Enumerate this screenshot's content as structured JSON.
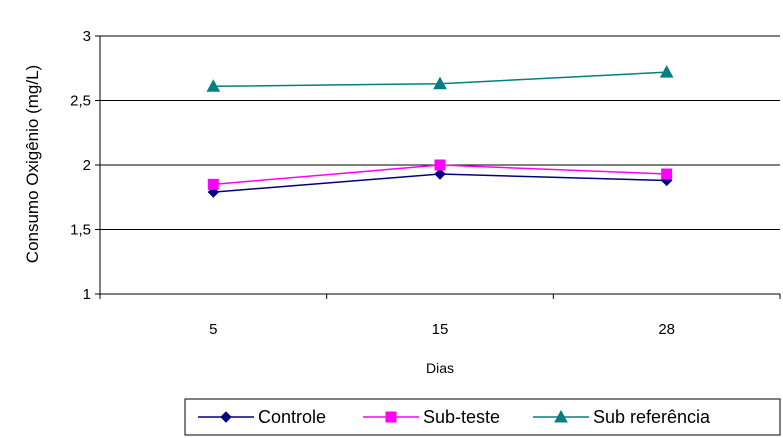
{
  "chart_data": {
    "type": "line",
    "categories": [
      "5",
      "15",
      "28"
    ],
    "series": [
      {
        "name": "Controle",
        "values": [
          1.79,
          1.93,
          1.88
        ],
        "color": "#000080",
        "marker": "diamond"
      },
      {
        "name": "Sub-teste",
        "values": [
          1.85,
          2.0,
          1.93
        ],
        "color": "#FF00FF",
        "marker": "square"
      },
      {
        "name": "Sub referência",
        "values": [
          2.61,
          2.63,
          2.72
        ],
        "color": "#008080",
        "marker": "triangle"
      }
    ],
    "title": "",
    "xlabel": "Dias",
    "ylabel": "Consumo Oxigênio  (mg/L)",
    "ylim": [
      1,
      3
    ],
    "yticks": [
      "1",
      "1,5",
      "2",
      "2,5",
      "3"
    ],
    "grid": true,
    "legend_position": "bottom"
  }
}
